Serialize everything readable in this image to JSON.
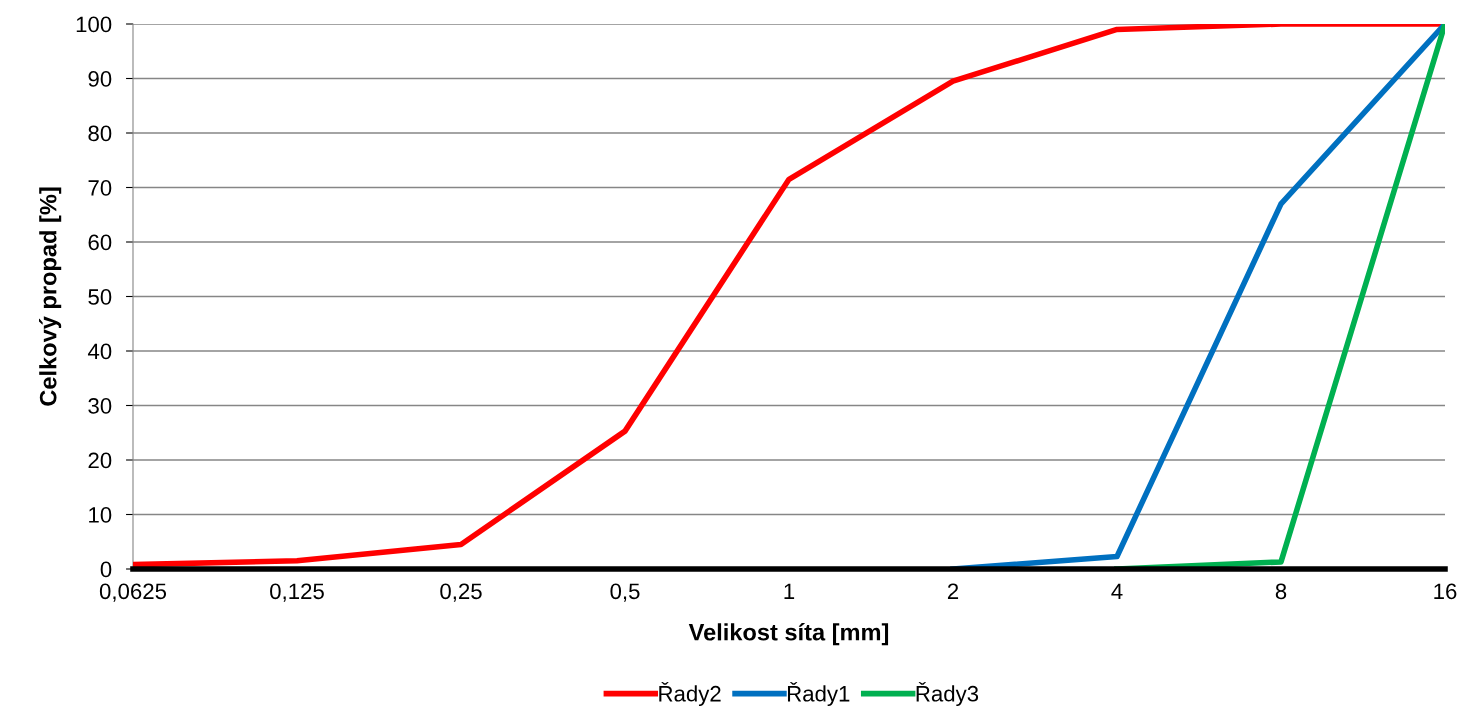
{
  "chart_data": {
    "type": "line",
    "xlabel": "Velikost síta [mm]",
    "ylabel": "Celkový propad [%]",
    "categories": [
      "0,0625",
      "0,125",
      "0,25",
      "0,5",
      "1",
      "2",
      "4",
      "8",
      "16"
    ],
    "series": [
      {
        "name": "Řady2",
        "color": "#ff0000",
        "values": [
          0.8,
          1.5,
          4.5,
          25.3,
          71.5,
          89.5,
          99,
          100,
          100
        ]
      },
      {
        "name": "Řady1",
        "color": "#0070c0",
        "values": [
          null,
          null,
          null,
          null,
          null,
          0,
          2.3,
          67,
          100
        ]
      },
      {
        "name": "Řady3",
        "color": "#00b050",
        "values": [
          null,
          null,
          null,
          null,
          null,
          null,
          0,
          1.3,
          100
        ]
      }
    ],
    "ylim": [
      0,
      100
    ],
    "yticks": [
      0,
      10,
      20,
      30,
      40,
      50,
      60,
      70,
      80,
      90,
      100
    ],
    "grid": "y",
    "legend": "bottom",
    "marker": "none",
    "line_style": "solid"
  }
}
